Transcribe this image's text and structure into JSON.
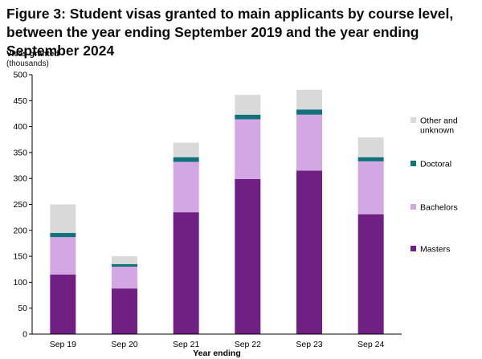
{
  "figure": {
    "title": "Figure 3: Student visas granted to main applicants by course level, between the year ending September 2019 and the year ending September 2024"
  },
  "chart_data": {
    "type": "bar",
    "stacked": true,
    "title": "Figure 3: Student visas granted to main applicants by course level, between the year ending September 2019 and the year ending September 2024",
    "xlabel": "Year ending",
    "ylabel": "Visas granted",
    "yunit": "(thousands)",
    "ylim": [
      0,
      500
    ],
    "yticks": [
      0,
      50,
      100,
      150,
      200,
      250,
      300,
      350,
      400,
      450,
      500
    ],
    "grid": false,
    "legend_position": "right",
    "categories": [
      "Sep 19",
      "Sep 20",
      "Sep 21",
      "Sep 22",
      "Sep 23",
      "Sep 24"
    ],
    "series": [
      {
        "name": "Masters",
        "color": "#702082",
        "values": [
          115,
          88,
          235,
          299,
          315,
          231
        ]
      },
      {
        "name": "Bachelors",
        "color": "#d2a7e3",
        "values": [
          72,
          42,
          97,
          115,
          108,
          102
        ]
      },
      {
        "name": "Doctoral",
        "color": "#12727a",
        "values": [
          8,
          5,
          9,
          9,
          10,
          8
        ]
      },
      {
        "name": "Other and unknown",
        "color": "#d9d9d9",
        "values": [
          55,
          15,
          28,
          38,
          38,
          38
        ]
      }
    ],
    "legend": [
      {
        "series": "Other and unknown",
        "lines": [
          "Other and",
          "unknown"
        ]
      },
      {
        "series": "Doctoral",
        "lines": [
          "Doctoral"
        ]
      },
      {
        "series": "Bachelors",
        "lines": [
          "Bachelors"
        ]
      },
      {
        "series": "Masters",
        "lines": [
          "Masters"
        ]
      }
    ]
  }
}
